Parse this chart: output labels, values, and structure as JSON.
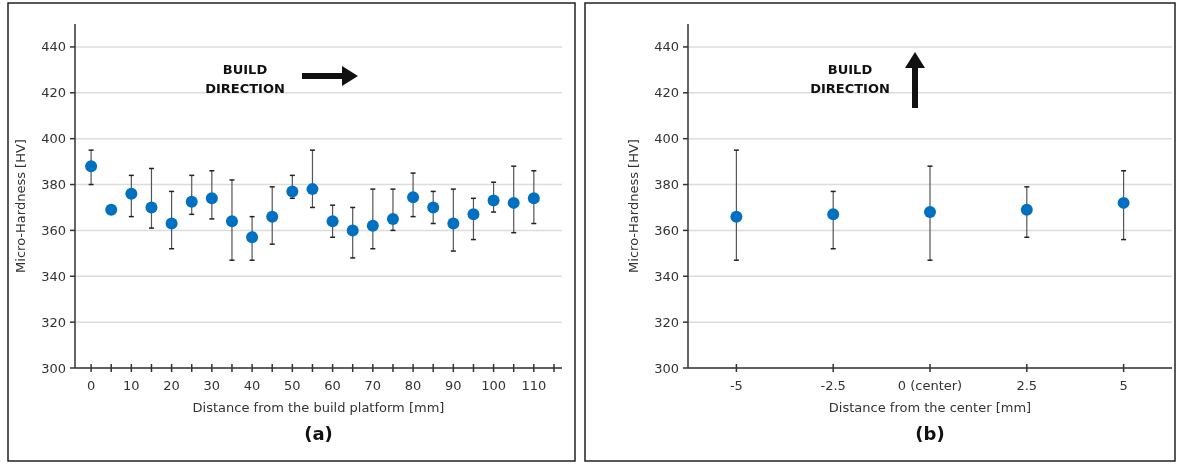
{
  "chart_data": [
    {
      "type": "scatter",
      "xlabel": "Distance from the build platform [mm]",
      "ylabel": "Micro-Hardness [HV]",
      "annotations": [
        "BUILD DIRECTION",
        "(a)"
      ],
      "x": [
        0,
        5,
        10,
        15,
        20,
        25,
        30,
        35,
        40,
        45,
        50,
        55,
        60,
        65,
        70,
        75,
        80,
        85,
        90,
        95,
        100,
        105,
        110
      ],
      "values": [
        388,
        369,
        376,
        370,
        363,
        372.5,
        374,
        364,
        357,
        366,
        377,
        378,
        364,
        360,
        362,
        365,
        374.5,
        370,
        363,
        367,
        373,
        372,
        374
      ],
      "errors": [
        [
          380,
          395
        ],
        null,
        [
          366,
          384
        ],
        [
          361,
          387
        ],
        [
          352,
          377
        ],
        [
          367,
          384
        ],
        [
          365,
          386
        ],
        [
          347,
          382
        ],
        [
          347,
          366
        ],
        [
          354,
          379
        ],
        [
          374,
          384
        ],
        [
          370,
          395
        ],
        [
          357,
          371
        ],
        [
          348,
          370
        ],
        [
          352,
          378
        ],
        [
          360,
          378
        ],
        [
          366,
          385
        ],
        [
          363,
          377
        ],
        [
          351,
          378
        ],
        [
          356,
          374
        ],
        [
          368,
          381
        ],
        [
          359,
          388
        ],
        [
          363,
          386
        ]
      ],
      "color": "#0070c0",
      "marker": "circle",
      "grid": "y",
      "xlim": [
        -4,
        117
      ],
      "xticks": [
        0,
        {
          "value": 5,
          "label": null
        },
        10,
        {
          "value": 15,
          "label": null
        },
        20,
        {
          "value": 25,
          "label": null
        },
        30,
        {
          "value": 35,
          "label": null
        },
        40,
        {
          "value": 45,
          "label": null
        },
        50,
        {
          "value": 55,
          "label": null
        },
        60,
        {
          "value": 65,
          "label": null
        },
        70,
        {
          "value": 75,
          "label": null
        },
        80,
        {
          "value": 85,
          "label": null
        },
        90,
        {
          "value": 95,
          "label": null
        },
        100,
        {
          "value": 105,
          "label": null
        },
        110,
        {
          "value": 115,
          "label": null
        }
      ],
      "ylim": [
        300,
        450
      ],
      "yticks": [
        300,
        320,
        340,
        360,
        380,
        400,
        420,
        440
      ]
    },
    {
      "type": "scatter",
      "xlabel": "Distance from the center [mm]",
      "ylabel": "Micro-Hardness [HV]",
      "annotations": [
        "BUILD DIRECTION",
        "(b)"
      ],
      "categories": [
        "-5",
        "-2.5",
        "0 (center)",
        "2.5",
        "5"
      ],
      "values": [
        366,
        367,
        368,
        369,
        372
      ],
      "errors": [
        [
          347,
          395
        ],
        [
          352,
          377
        ],
        [
          347,
          388
        ],
        [
          357,
          379
        ],
        [
          356,
          386
        ]
      ],
      "color": "#0070c0",
      "marker": "circle",
      "grid": "y",
      "ylim": [
        300,
        450
      ],
      "yticks": [
        300,
        320,
        340,
        360,
        380,
        400,
        420,
        440
      ]
    }
  ]
}
